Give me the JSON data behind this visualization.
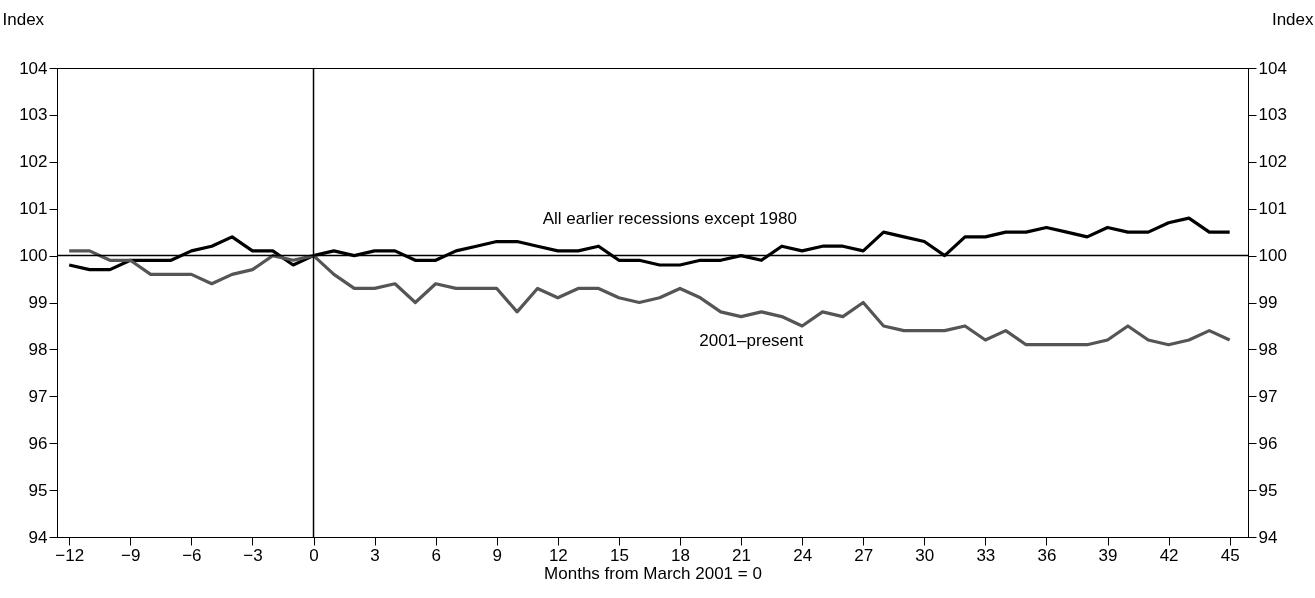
{
  "chart_data": {
    "type": "line",
    "xlabel": "Months from March 2001 = 0",
    "ylabel": "Index",
    "y2label": "Index",
    "x": [
      -12,
      -11,
      -10,
      -9,
      -8,
      -7,
      -6,
      -5,
      -4,
      -3,
      -2,
      -1,
      0,
      1,
      2,
      3,
      4,
      5,
      6,
      7,
      8,
      9,
      10,
      11,
      12,
      13,
      14,
      15,
      16,
      17,
      18,
      19,
      20,
      21,
      22,
      23,
      24,
      25,
      26,
      27,
      28,
      29,
      30,
      31,
      32,
      33,
      34,
      35,
      36,
      37,
      38,
      39,
      40,
      41,
      42,
      43,
      44,
      45
    ],
    "series": [
      {
        "name": "All earlier recessions except 1980",
        "color": "#000000",
        "values": [
          99.8,
          99.7,
          99.7,
          99.9,
          99.9,
          99.9,
          100.1,
          100.2,
          100.4,
          100.1,
          100.1,
          99.8,
          100.0,
          100.1,
          100.0,
          100.1,
          100.1,
          99.9,
          99.9,
          100.1,
          100.2,
          100.3,
          100.3,
          100.2,
          100.1,
          100.1,
          100.2,
          99.9,
          99.9,
          99.8,
          99.8,
          99.9,
          99.9,
          100.0,
          99.9,
          100.2,
          100.1,
          100.2,
          100.2,
          100.1,
          100.5,
          100.4,
          100.3,
          100.0,
          100.4,
          100.4,
          100.5,
          100.5,
          100.6,
          100.5,
          100.4,
          100.6,
          100.5,
          100.5,
          100.7,
          100.8,
          100.5,
          100.5
        ]
      },
      {
        "name": "2001–present",
        "color": "#555555",
        "values": [
          100.1,
          100.1,
          99.9,
          99.9,
          99.6,
          99.6,
          99.6,
          99.4,
          99.6,
          99.7,
          100.0,
          99.9,
          100.0,
          99.6,
          99.3,
          99.3,
          99.4,
          99.0,
          99.4,
          99.3,
          99.3,
          99.3,
          98.8,
          99.3,
          99.1,
          99.3,
          99.3,
          99.1,
          99.0,
          99.1,
          99.3,
          99.1,
          98.8,
          98.7,
          98.8,
          98.7,
          98.5,
          98.8,
          98.7,
          99.0,
          98.5,
          98.4,
          98.4,
          98.4,
          98.5,
          98.2,
          98.4,
          98.1,
          98.1,
          98.1,
          98.1,
          98.2,
          98.5,
          98.2,
          98.1,
          98.2,
          98.4,
          98.2
        ]
      }
    ],
    "xlim": [
      -12.6,
      45.9
    ],
    "xticks": [
      -12,
      -9,
      -6,
      -3,
      0,
      3,
      6,
      9,
      12,
      15,
      18,
      21,
      24,
      27,
      30,
      33,
      36,
      39,
      42,
      45
    ],
    "ylim": [
      94,
      104
    ],
    "yticks": [
      94,
      95,
      96,
      97,
      98,
      99,
      100,
      101,
      102,
      103,
      104
    ],
    "y2lim": [
      94,
      104
    ],
    "y2ticks": [
      94,
      95,
      96,
      97,
      98,
      99,
      100,
      101,
      102,
      103,
      104
    ],
    "ref_lines": [
      {
        "axis": "y",
        "value": 100,
        "color": "#000000"
      },
      {
        "axis": "x",
        "value": 0,
        "color": "#000000"
      }
    ],
    "grid": false,
    "legend": false,
    "line_style": "solid",
    "marker": "none"
  }
}
